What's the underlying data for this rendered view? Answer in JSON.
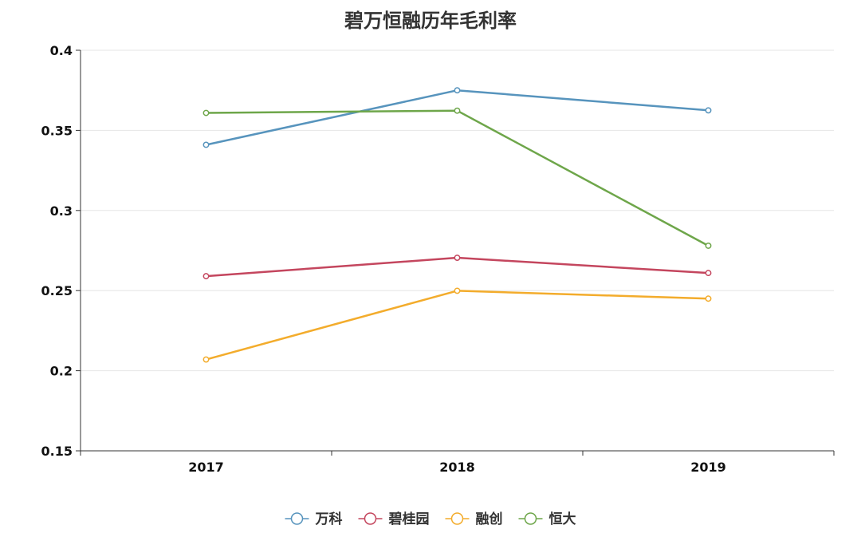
{
  "chart_data": {
    "type": "line",
    "title": "碧万恒融历年毛利率",
    "categories": [
      "2017",
      "2018",
      "2019"
    ],
    "ylim": [
      0.15,
      0.4
    ],
    "yticks": [
      "0.15",
      "0.2",
      "0.25",
      "0.3",
      "0.35",
      "0.4"
    ],
    "grid": true,
    "legend_position": "bottom",
    "series": [
      {
        "name": "万科",
        "color": "#5794bd",
        "values": [
          0.341,
          0.375,
          0.3625
        ]
      },
      {
        "name": "碧桂园",
        "color": "#c4465e",
        "values": [
          0.259,
          0.2705,
          0.261
        ]
      },
      {
        "name": "融创",
        "color": "#f3ac2c",
        "values": [
          0.207,
          0.2499,
          0.245
        ]
      },
      {
        "name": "恒大",
        "color": "#6ea64a",
        "values": [
          0.3609,
          0.3623,
          0.278
        ]
      }
    ]
  }
}
